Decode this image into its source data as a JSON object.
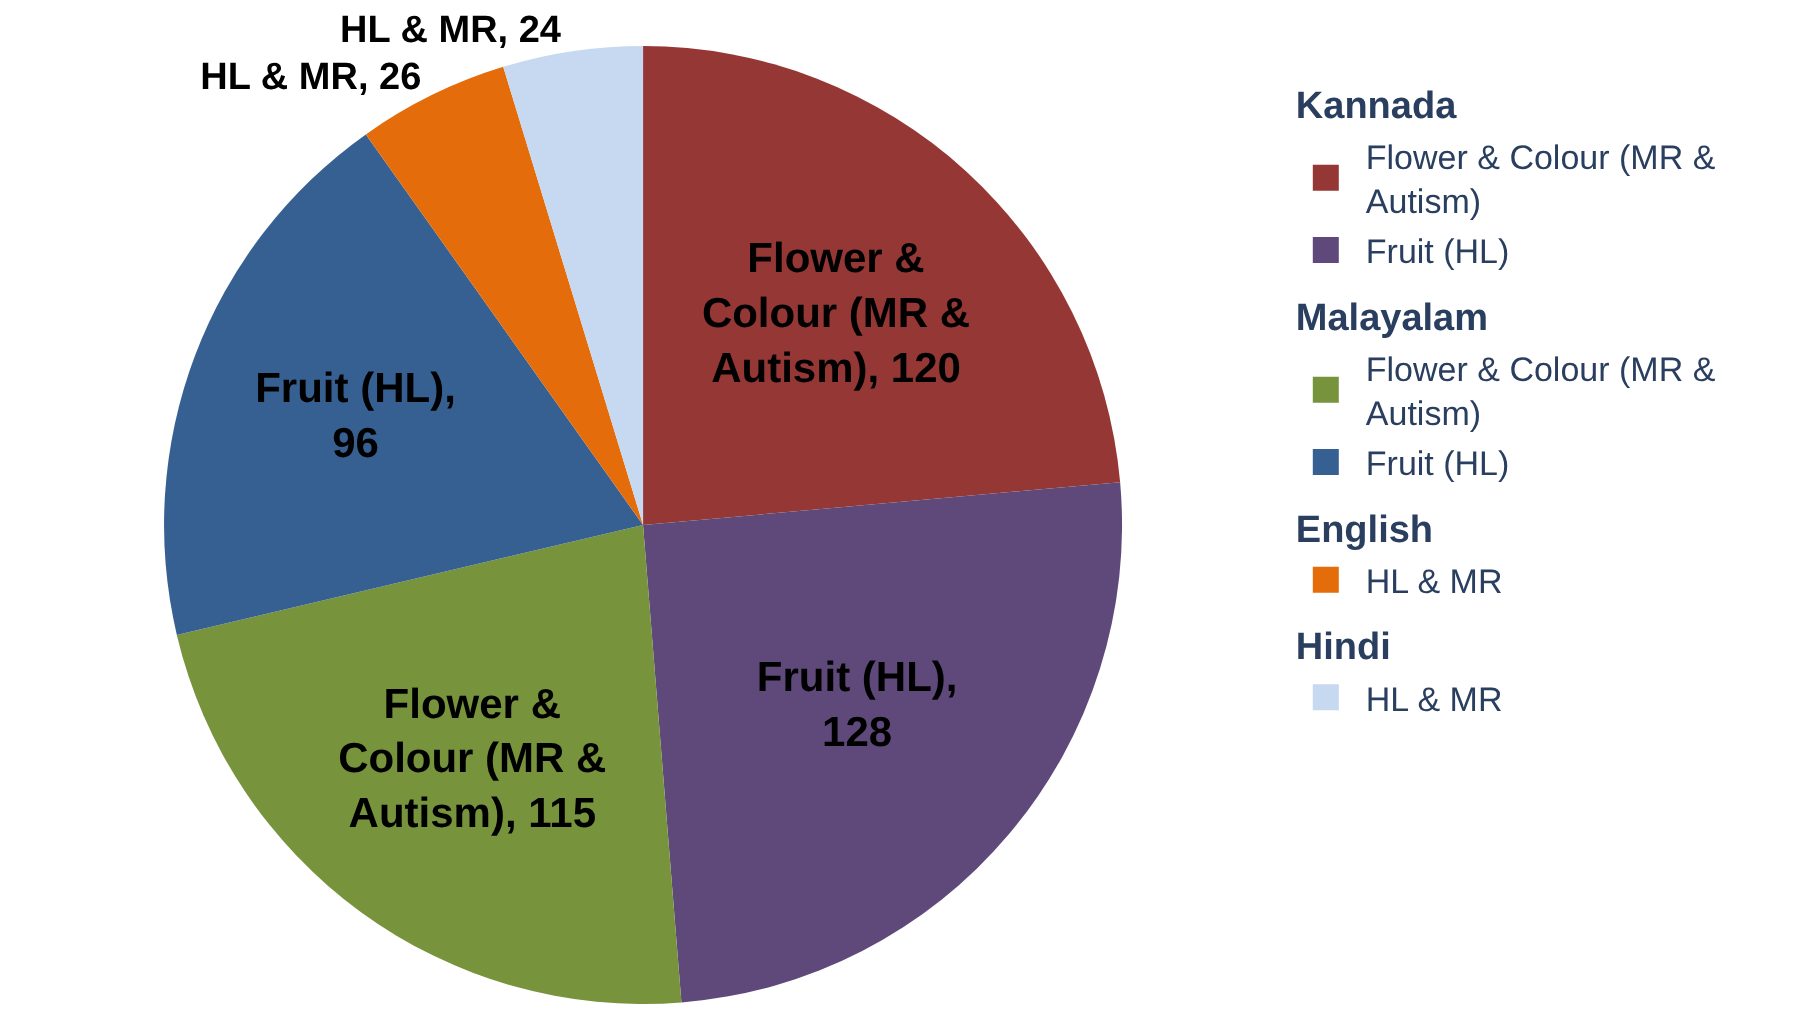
{
  "chart_data": {
    "type": "pie",
    "categories": [
      "Flower & Colour (MR & Autism)",
      "Fruit (HL)",
      "Flower & Colour (MR & Autism)",
      "Fruit (HL)",
      "HL & MR",
      "HL & MR"
    ],
    "values": [
      120,
      128,
      115,
      96,
      26,
      24
    ],
    "colors": [
      "#953735",
      "#5f497a",
      "#77933c",
      "#376092",
      "#e46c0a",
      "#c6d9f1"
    ],
    "value_labels": [
      "Flower & Colour (MR & Autism), 120",
      "Fruit (HL), 128",
      "Flower & Colour (MR & Autism), 115",
      "Fruit (HL), 96",
      "HL & MR, 26",
      "HL & MR, 24"
    ],
    "legend": "right",
    "annotations": [
      "Kannada",
      "Malayalam",
      "English",
      "Hindi"
    ]
  }
}
